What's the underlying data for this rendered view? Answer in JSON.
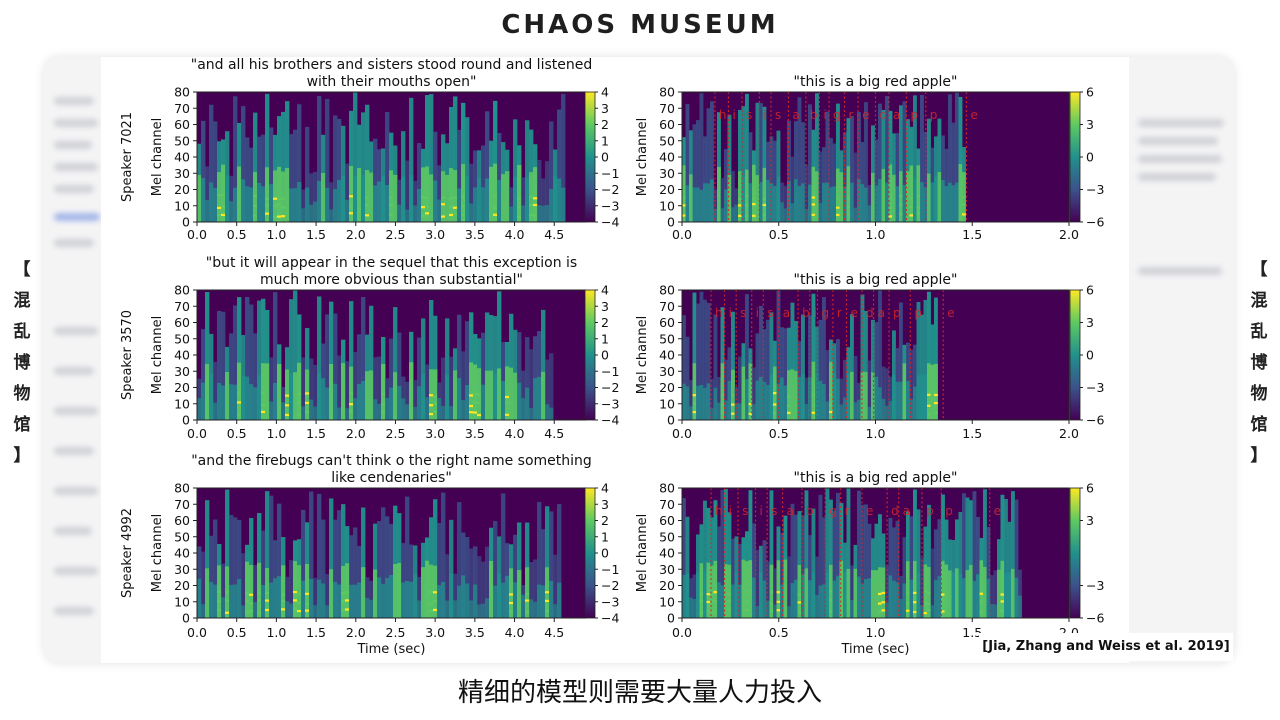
{
  "brand": "CHAOS MUSEUM",
  "side_label_chars": [
    "【",
    "混",
    "乱",
    "博",
    "物",
    "馆",
    "】"
  ],
  "citation": "[Jia, Zhang and Weiss et al. 2019]",
  "subtitle": "精细的模型则需要大量人力投入",
  "colors": {
    "colormap": [
      "#440154",
      "#3b528b",
      "#21918c",
      "#5ec962",
      "#fde725"
    ],
    "phoneme_line": "#d62728"
  },
  "chart_data": [
    {
      "type": "heatmap",
      "title_lines": [
        "\"and all his brothers and sisters stood round and listened",
        "with their mouths open\""
      ],
      "ylabel_outer": "Speaker 7021",
      "ylabel": "Mel channel",
      "xlabel": "",
      "xlim": [
        0,
        4.9
      ],
      "xticks": [
        "0.0",
        "0.5",
        "1.0",
        "1.5",
        "2.0",
        "2.5",
        "3.0",
        "3.5",
        "4.0",
        "4.5"
      ],
      "ylim": [
        0,
        80
      ],
      "yticks": [
        "0",
        "10",
        "20",
        "30",
        "40",
        "50",
        "60",
        "70",
        "80"
      ],
      "colorbar": {
        "min": -4,
        "max": 4,
        "ticks": [
          "4",
          "3",
          "2",
          "1",
          "0",
          "−1",
          "−2",
          "−3",
          "−4"
        ]
      },
      "speech_end_sec": 4.6
    },
    {
      "type": "heatmap",
      "title_lines": [
        "\"this is a big red apple\""
      ],
      "ylabel": "Mel channel",
      "xlabel": "",
      "xlim": [
        0,
        2.0
      ],
      "xticks": [
        "0.0",
        "0.5",
        "1.0",
        "1.5",
        "2.0"
      ],
      "ylim": [
        0,
        80
      ],
      "yticks": [
        "0",
        "10",
        "20",
        "30",
        "40",
        "50",
        "60",
        "70",
        "80"
      ],
      "colorbar": {
        "min": -6,
        "max": 6,
        "ticks": [
          "6",
          "3",
          "0",
          "−3",
          "−6"
        ]
      },
      "speech_end_sec": 1.45,
      "phonemes": [
        {
          "label": "h",
          "t": 0.17
        },
        {
          "label": "i",
          "t": 0.24
        },
        {
          "label": "s",
          "t": 0.31
        },
        {
          "label": "i",
          "t": 0.4
        },
        {
          "label": "s",
          "t": 0.46
        },
        {
          "label": "a",
          "t": 0.55
        },
        {
          "label": "b",
          "t": 0.64
        },
        {
          "label": "i",
          "t": 0.71
        },
        {
          "label": "g",
          "t": 0.76
        },
        {
          "label": "r",
          "t": 0.84
        },
        {
          "label": "e",
          "t": 0.91
        },
        {
          "label": "d",
          "t": 1.0
        },
        {
          "label": "a",
          "t": 1.07
        },
        {
          "label": "p",
          "t": 1.16
        },
        {
          "label": "p",
          "t": 1.26
        },
        {
          "label": "e",
          "t": 1.47
        }
      ]
    },
    {
      "type": "heatmap",
      "title_lines": [
        "\"but it will appear in the sequel that this exception is",
        "much more obvious than substantial\""
      ],
      "ylabel_outer": "Speaker 3570",
      "ylabel": "Mel channel",
      "xlabel": "",
      "xlim": [
        0,
        4.9
      ],
      "xticks": [
        "0.0",
        "0.5",
        "1.0",
        "1.5",
        "2.0",
        "2.5",
        "3.0",
        "3.5",
        "4.0",
        "4.5"
      ],
      "ylim": [
        0,
        80
      ],
      "yticks": [
        "0",
        "10",
        "20",
        "30",
        "40",
        "50",
        "60",
        "70",
        "80"
      ],
      "colorbar": {
        "min": -4,
        "max": 4,
        "ticks": [
          "4",
          "3",
          "2",
          "1",
          "0",
          "−1",
          "−2",
          "−3",
          "−4"
        ]
      },
      "speech_end_sec": 4.45
    },
    {
      "type": "heatmap",
      "title_lines": [
        "\"this is a big red apple\""
      ],
      "ylabel": "Mel channel",
      "xlabel": "",
      "xlim": [
        0,
        2.0
      ],
      "xticks": [
        "0.0",
        "0.5",
        "1.0",
        "1.5",
        "2.0"
      ],
      "ylim": [
        0,
        80
      ],
      "yticks": [
        "0",
        "10",
        "20",
        "30",
        "40",
        "50",
        "60",
        "70",
        "80"
      ],
      "colorbar": {
        "min": -6,
        "max": 6,
        "ticks": [
          "6",
          "3",
          "0",
          "−3",
          "−6"
        ]
      },
      "speech_end_sec": 1.32,
      "phonemes": [
        {
          "label": "h",
          "t": 0.15
        },
        {
          "label": "i",
          "t": 0.22
        },
        {
          "label": "s",
          "t": 0.28
        },
        {
          "label": "i",
          "t": 0.36
        },
        {
          "label": "s",
          "t": 0.42
        },
        {
          "label": "a",
          "t": 0.5
        },
        {
          "label": "b",
          "t": 0.6
        },
        {
          "label": "i",
          "t": 0.66
        },
        {
          "label": "g",
          "t": 0.7
        },
        {
          "label": "r",
          "t": 0.78
        },
        {
          "label": "e",
          "t": 0.85
        },
        {
          "label": "d",
          "t": 0.93
        },
        {
          "label": "a",
          "t": 0.99
        },
        {
          "label": "p",
          "t": 1.07
        },
        {
          "label": "p",
          "t": 1.18
        },
        {
          "label": "e",
          "t": 1.35
        }
      ]
    },
    {
      "type": "heatmap",
      "title_lines": [
        "\"and the firebugs can't think o the right name something",
        "like cendenaries\""
      ],
      "ylabel_outer": "Speaker 4992",
      "ylabel": "Mel channel",
      "xlabel": "Time (sec)",
      "xlim": [
        0,
        4.9
      ],
      "xticks": [
        "0.0",
        "0.5",
        "1.0",
        "1.5",
        "2.0",
        "2.5",
        "3.0",
        "3.5",
        "4.0",
        "4.5"
      ],
      "ylim": [
        0,
        80
      ],
      "yticks": [
        "0",
        "10",
        "20",
        "30",
        "40",
        "50",
        "60",
        "70",
        "80"
      ],
      "colorbar": {
        "min": -4,
        "max": 4,
        "ticks": [
          "4",
          "3",
          "2",
          "1",
          "0",
          "−1",
          "−2",
          "−3",
          "−4"
        ]
      },
      "speech_end_sec": 4.55
    },
    {
      "type": "heatmap",
      "title_lines": [
        "\"this is a big red apple\""
      ],
      "ylabel": "Mel channel",
      "xlabel": "Time (sec)",
      "xlim": [
        0,
        2.0
      ],
      "xticks": [
        "0.0",
        "0.5",
        "1.0",
        "1.5",
        "2.0"
      ],
      "ylim": [
        0,
        80
      ],
      "yticks": [
        "0",
        "10",
        "20",
        "30",
        "40",
        "50",
        "60",
        "70",
        "80"
      ],
      "colorbar": {
        "min": -6,
        "max": 6,
        "ticks": [
          "6",
          "3",
          "−3",
          "−6"
        ]
      },
      "speech_end_sec": 1.75,
      "phonemes": [
        {
          "label": "h",
          "t": 0.15
        },
        {
          "label": "i",
          "t": 0.22
        },
        {
          "label": "s",
          "t": 0.29
        },
        {
          "label": "i",
          "t": 0.38
        },
        {
          "label": "s",
          "t": 0.44
        },
        {
          "label": "a",
          "t": 0.52
        },
        {
          "label": "b",
          "t": 0.62
        },
        {
          "label": "g",
          "t": 0.74
        },
        {
          "label": "r",
          "t": 0.82
        },
        {
          "label": "e",
          "t": 0.93
        },
        {
          "label": "d",
          "t": 1.06
        },
        {
          "label": "a",
          "t": 1.12
        },
        {
          "label": "p",
          "t": 1.24
        },
        {
          "label": "p",
          "t": 1.34
        },
        {
          "label": "e",
          "t": 1.59
        }
      ]
    }
  ]
}
